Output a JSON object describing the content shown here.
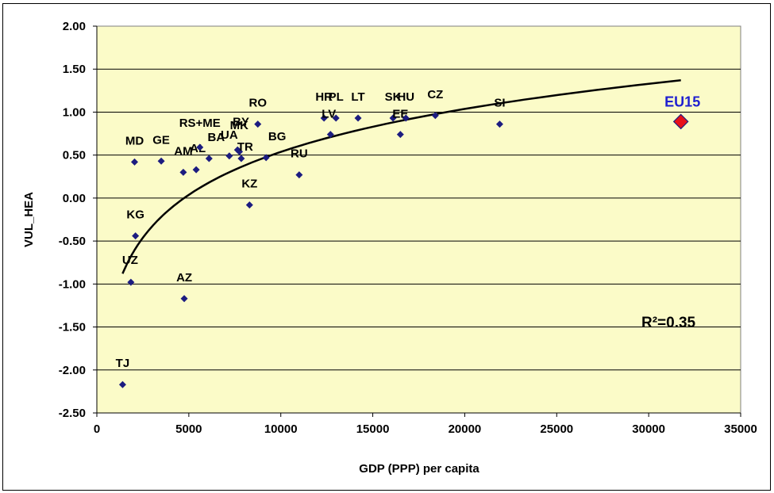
{
  "chart_data": {
    "type": "scatter",
    "title": "",
    "xlabel": "GDP (PPP) per capita",
    "ylabel": "VUL_HEA",
    "xlim": [
      0,
      35000
    ],
    "ylim": [
      -2.5,
      2.0
    ],
    "x_ticks": [
      "0",
      "5000",
      "10000",
      "15000",
      "20000",
      "25000",
      "30000",
      "35000"
    ],
    "y_ticks": [
      "2.00",
      "1.50",
      "1.00",
      "0.50",
      "0.00",
      "-0.50",
      "-1.00",
      "-1.50",
      "-2.00",
      "-2.50"
    ],
    "grid": {
      "horizontal": true,
      "vertical": false
    },
    "colors": {
      "plot_bg": "#fbfbc8",
      "marker": "#1c1c80",
      "highlight": "#e8101a",
      "highlight_label": "#1f1fd0",
      "trend": "#000000"
    },
    "points": [
      {
        "label": "TJ",
        "x": 1400,
        "y": -2.17
      },
      {
        "label": "UZ",
        "x": 1850,
        "y": -0.98
      },
      {
        "label": "KG",
        "x": 2100,
        "y": -0.44
      },
      {
        "label": "MD",
        "x": 2050,
        "y": 0.42
      },
      {
        "label": "GE",
        "x": 3500,
        "y": 0.43
      },
      {
        "label": "AZ",
        "x": 4750,
        "y": -1.17
      },
      {
        "label": "AM",
        "x": 4700,
        "y": 0.3
      },
      {
        "label": "AL",
        "x": 5400,
        "y": 0.33
      },
      {
        "label": "RS+ME",
        "x": 5600,
        "y": 0.59
      },
      {
        "label": "BA",
        "x": 6100,
        "y": 0.46
      },
      {
        "label": "UA",
        "x": 7200,
        "y": 0.49
      },
      {
        "label": "MK",
        "x": 7650,
        "y": 0.56
      },
      {
        "label": "BY",
        "x": 7750,
        "y": 0.54
      },
      {
        "label": "TR",
        "x": 7850,
        "y": 0.46
      },
      {
        "label": "KZ",
        "x": 8300,
        "y": -0.08
      },
      {
        "label": "RO",
        "x": 8750,
        "y": 0.86
      },
      {
        "label": "BG",
        "x": 9200,
        "y": 0.47
      },
      {
        "label": "RU",
        "x": 11000,
        "y": 0.27
      },
      {
        "label": "HR",
        "x": 12350,
        "y": 0.93
      },
      {
        "label": "LV",
        "x": 12700,
        "y": 0.74
      },
      {
        "label": "PL",
        "x": 13000,
        "y": 0.93
      },
      {
        "label": "LT",
        "x": 14200,
        "y": 0.93
      },
      {
        "label": "SK",
        "x": 16100,
        "y": 0.93
      },
      {
        "label": "EE",
        "x": 16500,
        "y": 0.74
      },
      {
        "label": "HU",
        "x": 16800,
        "y": 0.93
      },
      {
        "label": "CZ",
        "x": 18400,
        "y": 0.96
      },
      {
        "label": "SI",
        "x": 21900,
        "y": 0.86
      }
    ],
    "highlight_point": {
      "label": "EU15",
      "x": 31750,
      "y": 0.89
    },
    "trendline": {
      "type": "logarithmic",
      "x_range": [
        1400,
        31750
      ],
      "y_range": [
        -0.88,
        1.37
      ]
    },
    "annotation": "R²=0.35"
  }
}
